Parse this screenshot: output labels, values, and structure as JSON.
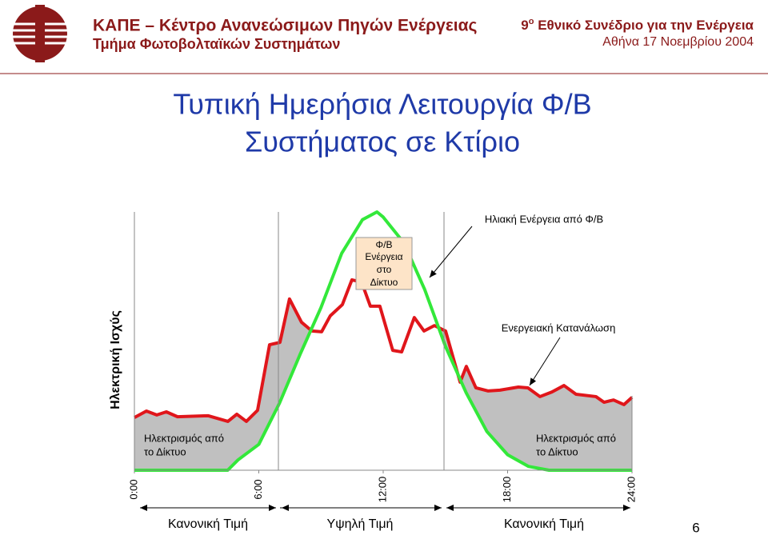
{
  "header": {
    "org": "ΚΑΠΕ – Κέντρο Ανανεώσιμων Πηγών Ενέργειας",
    "dept": "Τμήμα Φωτοβολταϊκών Συστημάτων",
    "conf_num": "9",
    "conf_sup": "ο",
    "conf_rest": "Εθνικό Συνέδριο για την Ενέργεια",
    "date": "Αθήνα 17 Νοεμβρίου 2004"
  },
  "title": [
    "Τυπική Ημερήσια Λειτουργία Φ/Β",
    "Συστήματος σε Κτίριο"
  ],
  "chart_data": {
    "type": "line",
    "y_label": "Ηλεκτρική Ισχύς",
    "xlim": [
      0,
      24
    ],
    "ylim": [
      0,
      100
    ],
    "xticks": [
      {
        "value": 0,
        "label": "0:00"
      },
      {
        "value": 6,
        "label": "6:00"
      },
      {
        "value": 12,
        "label": "12:00"
      },
      {
        "value": 18,
        "label": "18:00"
      },
      {
        "value": 24,
        "label": "24:00"
      }
    ],
    "series": [
      {
        "color": "#e0161b",
        "fill": "#c0c0c0",
        "x": [
          0,
          0.58,
          1.08,
          1.54,
          2.08,
          3.55,
          4.51,
          4.94,
          5.4,
          5.94,
          6.52,
          7.02,
          7.48,
          8.06,
          8.56,
          9.03,
          9.45,
          10.03,
          10.49,
          10.96,
          11.38,
          11.84,
          12.46,
          12.89,
          13.5,
          13.97,
          14.47,
          15.01,
          15.71,
          16.01,
          16.47,
          17.05,
          17.63,
          18.52,
          18.98,
          19.56,
          20.14,
          20.72,
          21.3,
          22.26,
          22.65,
          23.11,
          23.61,
          24
        ],
        "values": [
          20.4,
          22.9,
          21.4,
          22.6,
          20.7,
          21.1,
          18.9,
          21.7,
          18.9,
          23.2,
          48.6,
          49.5,
          66.3,
          57.3,
          53.9,
          53.6,
          59.8,
          64.1,
          73.7,
          72.8,
          63.5,
          63.5,
          46.4,
          45.8,
          59.1,
          53.9,
          56,
          53.9,
          34.1,
          40.2,
          31.9,
          30.7,
          31,
          32.2,
          31.9,
          28.5,
          30.3,
          32.8,
          29.4,
          28.5,
          26.3,
          27.2,
          25.4,
          28.2
        ]
      },
      {
        "color": "#33e83a",
        "fill": "#ffffff",
        "x": [
          0,
          4.5,
          5,
          6,
          7,
          8,
          9,
          10,
          11,
          11.7,
          12,
          13,
          14,
          15,
          16,
          17,
          18,
          19,
          20,
          20.2,
          24
        ],
        "values": [
          0,
          0,
          4,
          10,
          26,
          45,
          63,
          84,
          97,
          100,
          98,
          88,
          70,
          48,
          30,
          15,
          6,
          1.5,
          0,
          0,
          0
        ]
      }
    ],
    "annotations": {
      "solar": "Ηλιακή Ενέργεια από Φ/Β",
      "to_grid": [
        "Φ/Β",
        "Ενέργεια",
        "στο",
        "Δίκτυο"
      ],
      "consumption": "Ενεργειακή Κατανάλωση",
      "from_grid_left": [
        "Ηλεκτρισμός από",
        "το Δίκτυο"
      ],
      "from_grid_right": [
        "Ηλεκτρισμός από",
        "το Δίκτυο"
      ]
    }
  },
  "price_bands": [
    "Κανονική Τιμή",
    "Υψηλή Τιμή",
    "Κανονική Τιμή"
  ],
  "page_number": "6"
}
